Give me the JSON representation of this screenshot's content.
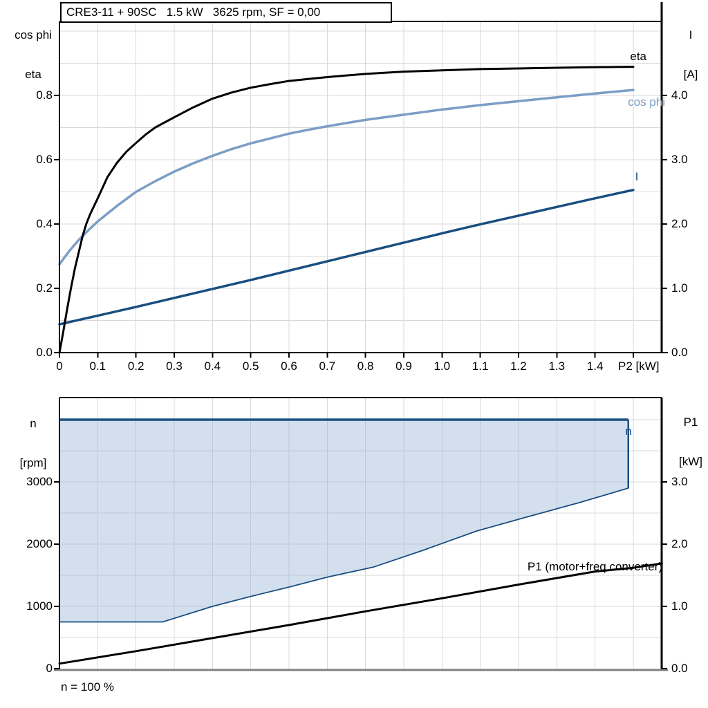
{
  "labels": {
    "title": "CRE3-11 + 90SC   1.5 kW   3625 rpm, SF = 0,00",
    "top_left_axis_line1": "cos phi",
    "top_left_axis_line2": "eta",
    "top_right_axis_line1": "I",
    "top_right_axis_line2": "[A]",
    "x_axis": "P2 [kW]",
    "eta_curve": "eta",
    "cos_phi_curve": "cos phi",
    "i_curve": "I",
    "bottom_left_axis_line1": "n",
    "bottom_left_axis_line2": "[rpm]",
    "bottom_right_axis_line1": "P1",
    "bottom_right_axis_line2": "[kW]",
    "n_curve": "n",
    "p1_curve": "P1 (motor+freq converter)",
    "note": "n = 100 %"
  },
  "colors": {
    "black": "#000000",
    "cos_phi": "#7C9DC5",
    "dark_blue": "#194E80",
    "envelope_fill": "rgba(158,183,212,0.45)",
    "grid": "#D9D9D9",
    "frame": "#000000",
    "bottom_baseline": "#808080"
  },
  "chart_data": [
    {
      "type": "line",
      "title": "CRE3-11 + 90SC   1.5 kW   3625 rpm, SF = 0,00",
      "xlabel": "P2 [kW]",
      "x_range": [
        0,
        1.575
      ],
      "x_grid_step": 0.1,
      "x_ticks": [
        [
          0,
          "0"
        ],
        [
          0.1,
          "0.1"
        ],
        [
          0.2,
          "0.2"
        ],
        [
          0.3,
          "0.3"
        ],
        [
          0.4,
          "0.4"
        ],
        [
          0.5,
          "0.5"
        ],
        [
          0.6,
          "0.6"
        ],
        [
          0.7,
          "0.7"
        ],
        [
          0.8,
          "0.8"
        ],
        [
          0.9,
          "0.9"
        ],
        [
          1.0,
          "1.0"
        ],
        [
          1.1,
          "1.1"
        ],
        [
          1.2,
          "1.2"
        ],
        [
          1.3,
          "1.3"
        ],
        [
          1.4,
          "1.4"
        ],
        [
          1.5,
          ""
        ]
      ],
      "y_left": {
        "label": "cos phi / eta",
        "range": [
          0,
          1.03
        ],
        "grid_step": 0.1,
        "ticks": [
          [
            0,
            "0.0"
          ],
          [
            0.2,
            "0.2"
          ],
          [
            0.4,
            "0.4"
          ],
          [
            0.6,
            "0.6"
          ],
          [
            0.8,
            "0.8"
          ]
        ]
      },
      "y_right": {
        "label": "I [A]",
        "range": [
          0,
          5.15
        ],
        "grid_step": 0.5,
        "ticks": [
          [
            0,
            "0.0"
          ],
          [
            1,
            "1.0"
          ],
          [
            2,
            "2.0"
          ],
          [
            3,
            "3.0"
          ],
          [
            4,
            "4.0"
          ]
        ]
      },
      "series": [
        {
          "name": "eta",
          "axis": "left",
          "color": "#000000",
          "width": 3,
          "points": [
            [
              0,
              0
            ],
            [
              0.01,
              0.065
            ],
            [
              0.02,
              0.135
            ],
            [
              0.03,
              0.2
            ],
            [
              0.04,
              0.26
            ],
            [
              0.05,
              0.31
            ],
            [
              0.06,
              0.36
            ],
            [
              0.07,
              0.4
            ],
            [
              0.08,
              0.43
            ],
            [
              0.09,
              0.455
            ],
            [
              0.1,
              0.48
            ],
            [
              0.125,
              0.545
            ],
            [
              0.15,
              0.59
            ],
            [
              0.175,
              0.625
            ],
            [
              0.2,
              0.652
            ],
            [
              0.225,
              0.678
            ],
            [
              0.25,
              0.7
            ],
            [
              0.3,
              0.732
            ],
            [
              0.35,
              0.763
            ],
            [
              0.4,
              0.79
            ],
            [
              0.45,
              0.809
            ],
            [
              0.5,
              0.824
            ],
            [
              0.55,
              0.835
            ],
            [
              0.6,
              0.845
            ],
            [
              0.65,
              0.851
            ],
            [
              0.7,
              0.857
            ],
            [
              0.75,
              0.862
            ],
            [
              0.8,
              0.867
            ],
            [
              0.9,
              0.874
            ],
            [
              1.0,
              0.878
            ],
            [
              1.1,
              0.882
            ],
            [
              1.2,
              0.884
            ],
            [
              1.3,
              0.886
            ],
            [
              1.4,
              0.888
            ],
            [
              1.5,
              0.889
            ]
          ]
        },
        {
          "name": "cos phi",
          "axis": "left",
          "color": "#7C9DC5",
          "width": 3.5,
          "points": [
            [
              0,
              0.275
            ],
            [
              0.025,
              0.315
            ],
            [
              0.05,
              0.35
            ],
            [
              0.075,
              0.38
            ],
            [
              0.1,
              0.408
            ],
            [
              0.15,
              0.456
            ],
            [
              0.2,
              0.5
            ],
            [
              0.25,
              0.533
            ],
            [
              0.3,
              0.563
            ],
            [
              0.35,
              0.589
            ],
            [
              0.4,
              0.612
            ],
            [
              0.45,
              0.633
            ],
            [
              0.5,
              0.651
            ],
            [
              0.55,
              0.666
            ],
            [
              0.6,
              0.681
            ],
            [
              0.65,
              0.693
            ],
            [
              0.7,
              0.704
            ],
            [
              0.75,
              0.714
            ],
            [
              0.8,
              0.724
            ],
            [
              0.85,
              0.732
            ],
            [
              0.9,
              0.74
            ],
            [
              0.95,
              0.748
            ],
            [
              1.0,
              0.756
            ],
            [
              1.1,
              0.77
            ],
            [
              1.2,
              0.782
            ],
            [
              1.3,
              0.794
            ],
            [
              1.4,
              0.806
            ],
            [
              1.5,
              0.817
            ]
          ]
        },
        {
          "name": "I",
          "axis": "right",
          "color": "#194E80",
          "width": 3.5,
          "points": [
            [
              0,
              0.44
            ],
            [
              0.1,
              0.575
            ],
            [
              0.2,
              0.71
            ],
            [
              0.3,
              0.85
            ],
            [
              0.4,
              0.99
            ],
            [
              0.5,
              1.13
            ],
            [
              0.6,
              1.275
            ],
            [
              0.7,
              1.42
            ],
            [
              0.8,
              1.565
            ],
            [
              0.9,
              1.71
            ],
            [
              1.0,
              1.855
            ],
            [
              1.1,
              1.995
            ],
            [
              1.2,
              2.13
            ],
            [
              1.3,
              2.265
            ],
            [
              1.4,
              2.4
            ],
            [
              1.5,
              2.53
            ]
          ]
        }
      ]
    },
    {
      "type": "area+line",
      "xlabel": "",
      "x_range": [
        0,
        1.575
      ],
      "x_grid_step": 0.1,
      "y_left": {
        "label": "n [rpm]",
        "range": [
          0,
          4355
        ],
        "grid_step": 500,
        "ticks": [
          [
            0,
            "0"
          ],
          [
            1000,
            "1000"
          ],
          [
            2000,
            "2000"
          ],
          [
            3000,
            "3000"
          ]
        ]
      },
      "y_right": {
        "label": "P1 [kW]",
        "range": [
          0,
          4.355
        ],
        "grid_step": 0.5,
        "ticks": [
          [
            0,
            "0.0"
          ],
          [
            1,
            "1.0"
          ],
          [
            2,
            "2.0"
          ],
          [
            3,
            "3.0"
          ]
        ]
      },
      "note": "n = 100 %",
      "envelope": {
        "name": "n",
        "n_max_rpm": 4000,
        "n_min_right_rpm": 2900,
        "drop_x": 1.487,
        "lower_edge_points": [
          [
            0,
            750
          ],
          [
            0.27,
            750
          ],
          [
            0.4,
            1000
          ],
          [
            0.5,
            1160
          ],
          [
            0.6,
            1310
          ],
          [
            0.7,
            1470
          ],
          [
            0.82,
            1630
          ],
          [
            0.95,
            1900
          ],
          [
            1.09,
            2210
          ],
          [
            1.23,
            2450
          ],
          [
            1.36,
            2670
          ],
          [
            1.487,
            2900
          ]
        ]
      },
      "series": [
        {
          "name": "P1 (motor+freq converter)",
          "axis": "right",
          "color": "#000000",
          "width": 3,
          "points": [
            [
              0,
              0.08
            ],
            [
              0.2,
              0.28
            ],
            [
              0.4,
              0.49
            ],
            [
              0.6,
              0.7
            ],
            [
              0.8,
              0.92
            ],
            [
              1.0,
              1.13
            ],
            [
              1.2,
              1.35
            ],
            [
              1.4,
              1.56
            ],
            [
              1.5,
              1.62
            ],
            [
              1.575,
              1.69
            ]
          ]
        }
      ]
    }
  ]
}
